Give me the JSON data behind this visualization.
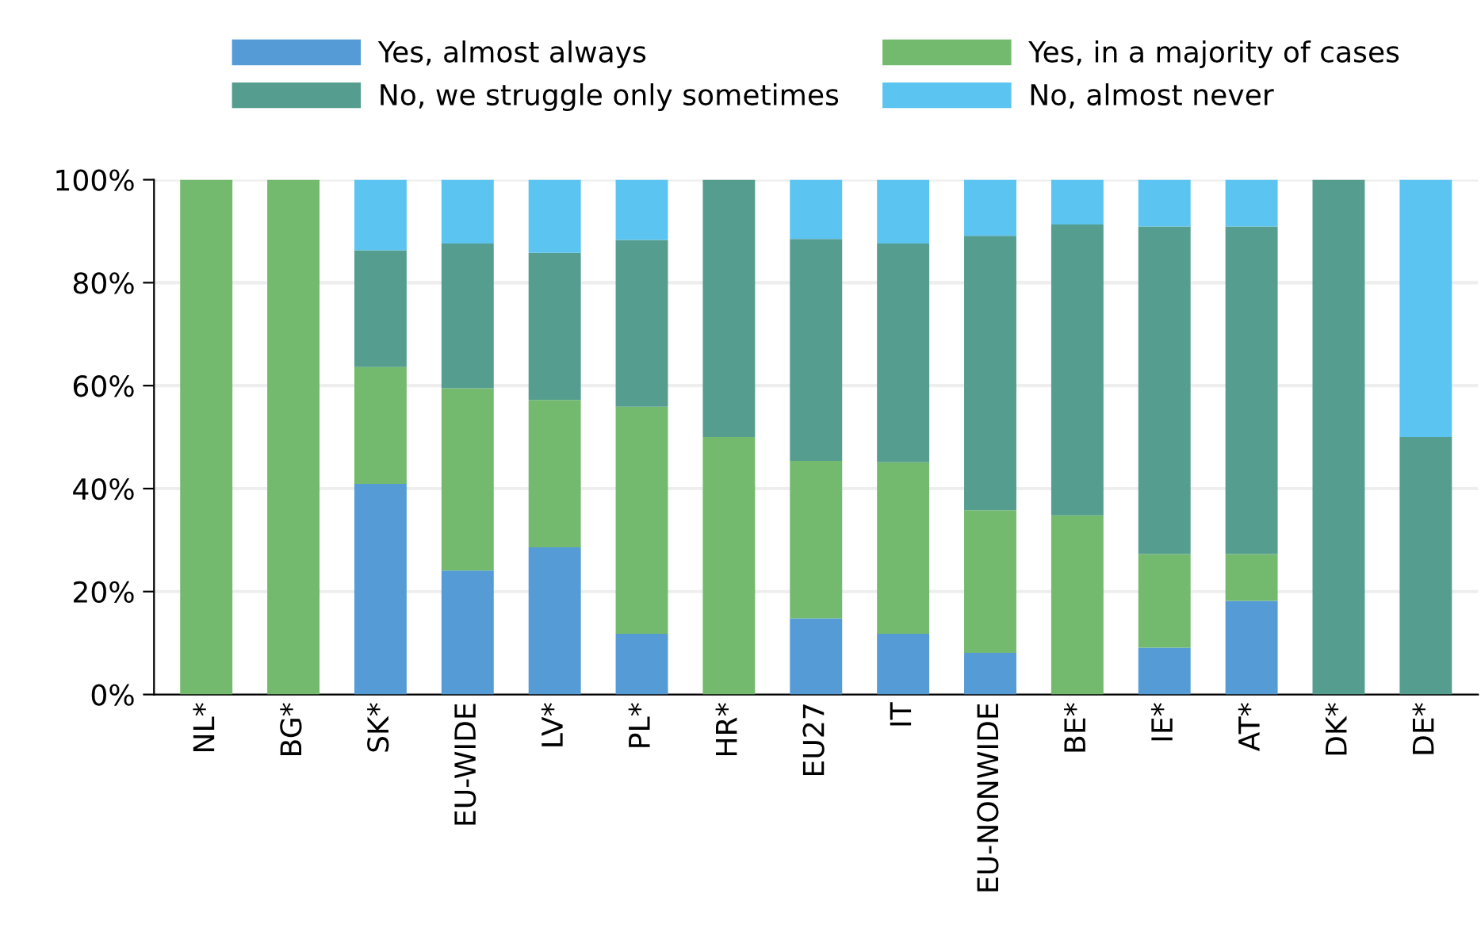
{
  "chart_data": {
    "type": "bar",
    "stacked": true,
    "categories": [
      "NL*",
      "BG*",
      "SK*",
      "EU-WIDE",
      "LV*",
      "PL*",
      "HR*",
      "EU27",
      "IT",
      "EU-NONWIDE",
      "BE*",
      "IE*",
      "AT*",
      "DK*",
      "DE*"
    ],
    "series": [
      {
        "name": "Yes, almost always",
        "color": "#559bd6",
        "values": [
          0,
          0,
          40.9,
          24.1,
          28.6,
          11.8,
          0,
          14.8,
          11.8,
          8.1,
          0,
          9.1,
          18.2,
          0,
          0
        ]
      },
      {
        "name": "Yes, in a majority of cases",
        "color": "#73ba6e",
        "values": [
          100,
          100,
          22.7,
          35.4,
          28.6,
          44.1,
          50,
          30.6,
          33.3,
          27.7,
          34.8,
          18.2,
          9.1,
          0,
          0
        ]
      },
      {
        "name": "No, we struggle only sometimes",
        "color": "#559e8f",
        "values": [
          0,
          0,
          22.7,
          28.1,
          28.6,
          32.4,
          50,
          43.1,
          42.5,
          53.3,
          56.5,
          63.6,
          63.6,
          100,
          50
        ]
      },
      {
        "name": "No, almost never",
        "color": "#5bc4f1",
        "values": [
          0,
          0,
          13.7,
          12.4,
          14.2,
          11.7,
          0,
          11.5,
          12.4,
          10.9,
          8.7,
          9.1,
          9.1,
          0,
          50
        ]
      }
    ],
    "ylim": [
      0,
      100
    ],
    "yticks": [
      {
        "value": 0,
        "label": "0%"
      },
      {
        "value": 20,
        "label": "20%"
      },
      {
        "value": 40,
        "label": "40%"
      },
      {
        "value": 60,
        "label": "60%"
      },
      {
        "value": 80,
        "label": "80%"
      },
      {
        "value": 100,
        "label": "100%"
      }
    ],
    "grid": "y",
    "legend": "top"
  }
}
